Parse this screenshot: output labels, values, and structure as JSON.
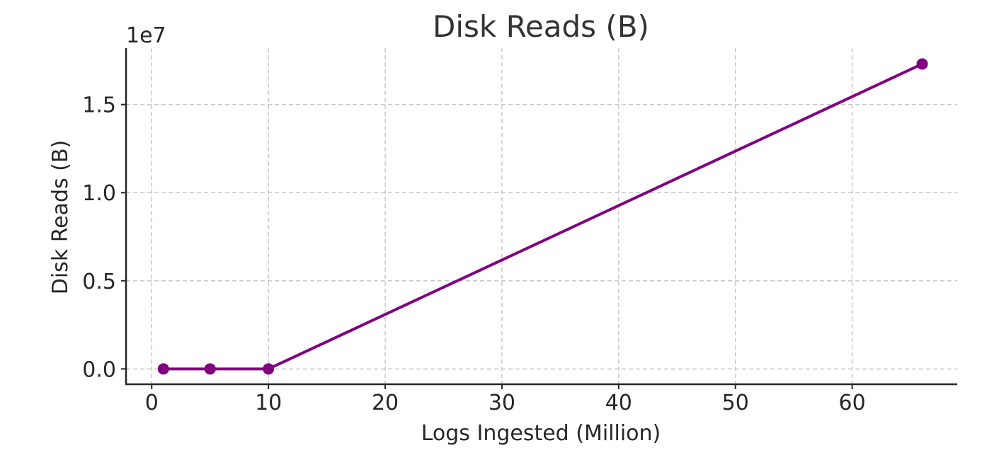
{
  "chart_data": {
    "type": "line",
    "title": "Disk Reads (B)",
    "xlabel": "Logs Ingested (Million)",
    "ylabel": "Disk Reads (B)",
    "y_offset_label": "1e7",
    "x_ticks": [
      "0",
      "10",
      "20",
      "30",
      "40",
      "50",
      "60"
    ],
    "y_ticks": [
      "0.0",
      "0.5",
      "1.0",
      "1.5"
    ],
    "xlim": [
      -2.2,
      69
    ],
    "ylim": [
      -870000,
      18200000
    ],
    "grid": true,
    "series": [
      {
        "color": "#800080",
        "x": [
          1,
          5,
          10,
          66
        ],
        "y": [
          0,
          0,
          0,
          17300000
        ]
      }
    ]
  }
}
